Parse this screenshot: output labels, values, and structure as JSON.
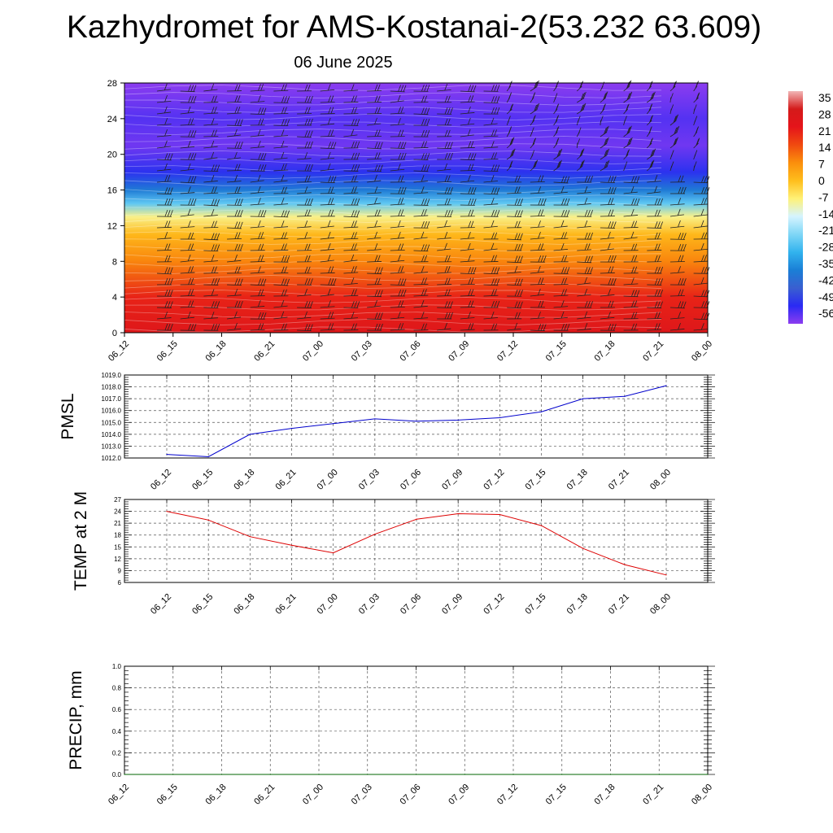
{
  "title": "Kazhydromet for AMS-Kostanai-2(53.232 63.609)",
  "subtitle": "06 June 2025",
  "chart_data": [
    {
      "type": "heatmap",
      "name": "temperature-height-section",
      "x_ticks": [
        "06_12",
        "06_15",
        "06_18",
        "06_21",
        "07_00",
        "07_03",
        "07_06",
        "07_09",
        "07_12",
        "07_15",
        "07_18",
        "07_21",
        "08_00"
      ],
      "y_ticks": [
        "0",
        "4",
        "8",
        "12",
        "16",
        "20",
        "24",
        "28"
      ],
      "ylim": [
        0,
        28
      ],
      "colorbar": {
        "labels": [
          "35",
          "28",
          "21",
          "14",
          "7",
          "0",
          "-7",
          "-14",
          "-21",
          "-28",
          "-35",
          "-42",
          "-49",
          "-56"
        ],
        "stops": [
          {
            "v": 35,
            "c": "#f2b6b6"
          },
          {
            "v": 28,
            "c": "#d41a1a"
          },
          {
            "v": 21,
            "c": "#e5141a"
          },
          {
            "v": 14,
            "c": "#f04a10"
          },
          {
            "v": 7,
            "c": "#fb8f0c"
          },
          {
            "v": 0,
            "c": "#ffbe1c"
          },
          {
            "v": -7,
            "c": "#fff176"
          },
          {
            "v": -14,
            "c": "#d5f4ff"
          },
          {
            "v": -21,
            "c": "#7fd6f6"
          },
          {
            "v": -28,
            "c": "#32b3ee"
          },
          {
            "v": -35,
            "c": "#1a7fd6"
          },
          {
            "v": -42,
            "c": "#3a5fd0"
          },
          {
            "v": -49,
            "c": "#2a2af4"
          },
          {
            "v": -56,
            "c": "#8c3cf0"
          }
        ]
      },
      "temperature_profile": [
        {
          "h": 0,
          "t": 24
        },
        {
          "h": 4,
          "t": 19
        },
        {
          "h": 8,
          "t": 8
        },
        {
          "h": 11,
          "t": 1
        },
        {
          "h": 13,
          "t": -8
        },
        {
          "h": 14.5,
          "t": -24
        },
        {
          "h": 16,
          "t": -36
        },
        {
          "h": 18,
          "t": -48
        },
        {
          "h": 21,
          "t": -54
        },
        {
          "h": 24,
          "t": -52
        },
        {
          "h": 28,
          "t": -56
        }
      ],
      "overlay": "wind barbs"
    },
    {
      "type": "line",
      "name": "pmsl",
      "ylabel": "PMSL",
      "categories": [
        "06_12",
        "06_15",
        "06_18",
        "06_21",
        "07_00",
        "07_03",
        "07_06",
        "07_09",
        "07_12",
        "07_15",
        "07_18",
        "07_21",
        "08_00"
      ],
      "values": [
        1012.3,
        1012.1,
        1014.0,
        1014.5,
        1014.9,
        1015.3,
        1015.1,
        1015.2,
        1015.4,
        1015.9,
        1017.0,
        1017.2,
        1018.1
      ],
      "y_ticks": [
        "1012.0",
        "1013.0",
        "1014.0",
        "1015.0",
        "1016.0",
        "1017.0",
        "1018.0",
        "1019.0"
      ],
      "ylim": [
        1012,
        1019
      ],
      "color": "#0000cc",
      "grid": true
    },
    {
      "type": "line",
      "name": "temp-2m",
      "ylabel": "TEMP at 2 M",
      "categories": [
        "06_12",
        "06_15",
        "06_18",
        "06_21",
        "07_00",
        "07_03",
        "07_06",
        "07_09",
        "07_12",
        "07_15",
        "07_18",
        "07_21",
        "08_00"
      ],
      "values": [
        24.0,
        21.8,
        17.6,
        15.4,
        13.5,
        18.2,
        22.0,
        23.4,
        23.2,
        20.4,
        14.6,
        10.5,
        7.9
      ],
      "y_ticks": [
        "6",
        "9",
        "12",
        "15",
        "18",
        "21",
        "24",
        "27"
      ],
      "ylim": [
        6,
        27
      ],
      "color": "#dd0000",
      "grid": true
    },
    {
      "type": "line",
      "name": "precip",
      "ylabel": "PRECIP, mm",
      "categories": [
        "06_12",
        "06_15",
        "06_18",
        "06_21",
        "07_00",
        "07_03",
        "07_06",
        "07_09",
        "07_12",
        "07_15",
        "07_18",
        "07_21",
        "08_00"
      ],
      "values": [
        0,
        0,
        0,
        0,
        0,
        0,
        0,
        0,
        0,
        0,
        0,
        0,
        0
      ],
      "y_ticks": [
        "0.0",
        "0.2",
        "0.4",
        "0.6",
        "0.8",
        "1.0"
      ],
      "ylim": [
        0,
        1
      ],
      "color": "#006400",
      "grid": true
    }
  ]
}
